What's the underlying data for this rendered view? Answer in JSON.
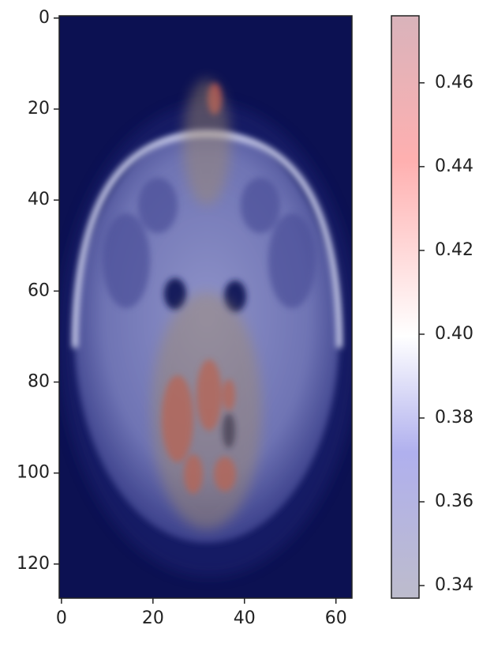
{
  "chart_data": {
    "type": "image",
    "xlim": [
      -0.5,
      63.5
    ],
    "xticks": [
      0,
      20,
      40,
      60
    ],
    "ylim": [
      127.5,
      -0.5
    ],
    "yticks": [
      0,
      20,
      40,
      60,
      80,
      100,
      120
    ],
    "colorbar": {
      "clim": [
        0.337,
        0.476
      ],
      "ticks": [
        0.34,
        0.36,
        0.38,
        {
          "value": 0.4,
          "label": "0.40"
        },
        0.42,
        0.44,
        0.46
      ]
    }
  }
}
